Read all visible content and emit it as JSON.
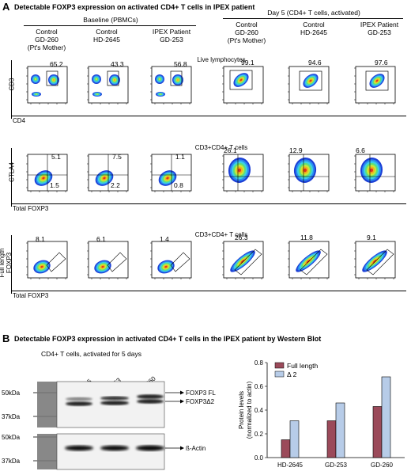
{
  "panelA": {
    "letter": "A",
    "title": "Detectable FOXP3 expression on activated CD4+ T cells in IPEX patient",
    "groups": [
      {
        "label": "Baseline (PBMCs)"
      },
      {
        "label": "Day 5 (CD4+ T cells, activated)"
      }
    ],
    "columns": [
      {
        "l1": "Control",
        "l2": "GD-260",
        "l3": "(Pt's Mother)"
      },
      {
        "l1": "Control",
        "l2": "HD-2645",
        "l3": ""
      },
      {
        "l1": "IPEX Patient",
        "l2": "GD-253",
        "l3": ""
      },
      {
        "l1": "Control",
        "l2": "GD-260",
        "l3": "(Pt's Mother)"
      },
      {
        "l1": "Control",
        "l2": "HD-2645",
        "l3": ""
      },
      {
        "l1": "IPEX Patient",
        "l2": "GD-253",
        "l3": ""
      }
    ],
    "rows": [
      {
        "section": "Live lymphocytes",
        "ylabel": "CD3",
        "xlabel": "CD4",
        "values": [
          [
            "65.2"
          ],
          [
            "43.3"
          ],
          [
            "56.8"
          ],
          [
            "99.1"
          ],
          [
            "94.6"
          ],
          [
            "97.6"
          ]
        ]
      },
      {
        "section": "CD3+CD4+ T cells",
        "ylabel": "CTLA4",
        "xlabel": "Total FOXP3",
        "values": [
          [
            "5.1",
            "1.5"
          ],
          [
            "7.5",
            "2.2"
          ],
          [
            "1.1",
            "0.8"
          ],
          [
            "26.1"
          ],
          [
            "12.9"
          ],
          [
            "6.6"
          ]
        ]
      },
      {
        "section": "CD3+CD4+ T cells",
        "ylabel": "Full length FOXP3",
        "xlabel": "Total FOXP3",
        "values": [
          [
            "8.1"
          ],
          [
            "6.1"
          ],
          [
            "1.4"
          ],
          [
            "26.3"
          ],
          [
            "11.8"
          ],
          [
            "9.1"
          ]
        ]
      }
    ]
  },
  "panelB": {
    "letter": "B",
    "title": "Detectable FOXP3 expression in activated CD4+ T cells in the IPEX patient by Western Blot",
    "subtitle": "CD4+ T cells, activated for 5 days",
    "lanes": [
      "HD-2645",
      "GD-253",
      "GD-260"
    ],
    "markers_top": [
      "50kDa",
      "37kDa"
    ],
    "markers_bottom": [
      "50kDa",
      "37kDa"
    ],
    "band_labels": [
      "FOXP3 FL",
      "FOXP3Δ2",
      "ß-Actin"
    ]
  },
  "chart_data": {
    "type": "bar",
    "categories": [
      "HD-2645",
      "GD-253",
      "GD-260"
    ],
    "series": [
      {
        "name": "Full length",
        "values": [
          0.15,
          0.31,
          0.43
        ],
        "color": "#9b4a5a"
      },
      {
        "name": "Δ 2",
        "values": [
          0.31,
          0.46,
          0.68
        ],
        "color": "#b7cce8"
      }
    ],
    "ylabel": "Protein levels (normalized to actin)",
    "ylim": [
      0,
      0.8
    ],
    "yticks": [
      "0.0",
      "0.2",
      "0.4",
      "0.6",
      "0.8"
    ],
    "legend": "top-left"
  }
}
